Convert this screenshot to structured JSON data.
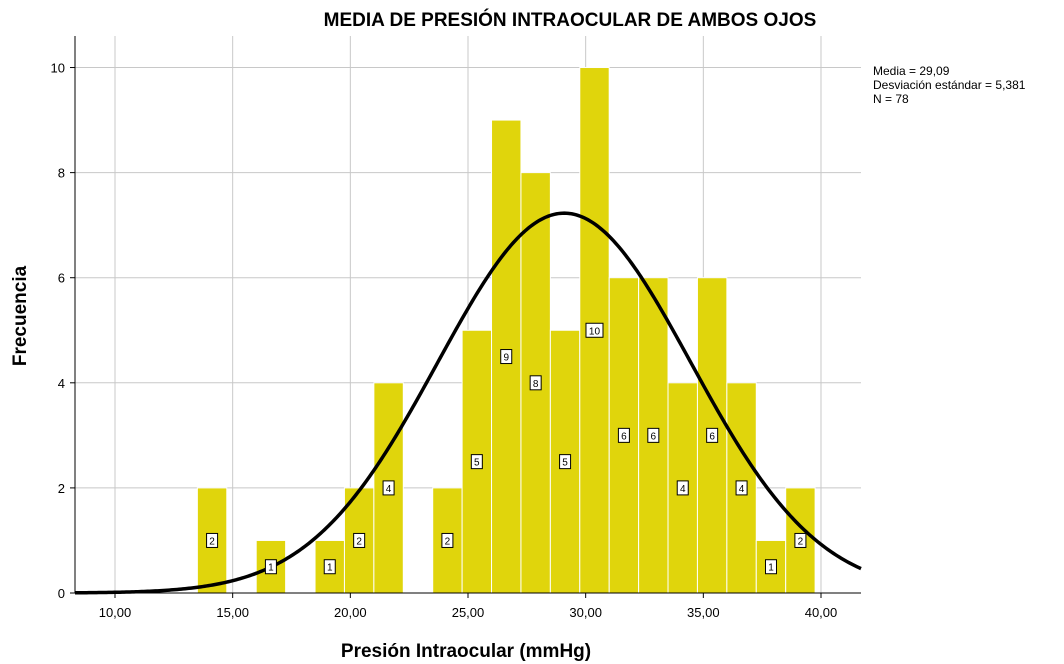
{
  "chart_data": {
    "type": "histogram",
    "title": "MEDIA DE PRESIÓN INTRAOCULAR DE AMBOS OJOS",
    "xlabel": "Presión Intraocular (mmHg)",
    "ylabel": "Frecuencia",
    "xlim": [
      8.3,
      41.7
    ],
    "ylim": [
      0,
      10.6
    ],
    "x_ticks": [
      10,
      15,
      20,
      25,
      30,
      35,
      40
    ],
    "x_tick_labels": [
      "10,00",
      "15,00",
      "20,00",
      "25,00",
      "30,00",
      "35,00",
      "40,00"
    ],
    "y_ticks": [
      0,
      2,
      4,
      6,
      8,
      10
    ],
    "y_tick_labels": [
      "0",
      "2",
      "4",
      "6",
      "8",
      "10"
    ],
    "grid": true,
    "bin_width": 1.25,
    "bars": [
      {
        "x_start": 13.5,
        "count": 2,
        "label": "2"
      },
      {
        "x_start": 16.0,
        "count": 1,
        "label": "1"
      },
      {
        "x_start": 18.5,
        "count": 1,
        "label": "1"
      },
      {
        "x_start": 19.75,
        "count": 2,
        "label": "2"
      },
      {
        "x_start": 21.0,
        "count": 4,
        "label": "4"
      },
      {
        "x_start": 23.5,
        "count": 2,
        "label": "2"
      },
      {
        "x_start": 24.75,
        "count": 5,
        "label": "5"
      },
      {
        "x_start": 26.0,
        "count": 9,
        "label": "9"
      },
      {
        "x_start": 27.25,
        "count": 8,
        "label": "8"
      },
      {
        "x_start": 28.5,
        "count": 5,
        "label": "5"
      },
      {
        "x_start": 29.75,
        "count": 10,
        "label": "10"
      },
      {
        "x_start": 31.0,
        "count": 6,
        "label": "6"
      },
      {
        "x_start": 32.25,
        "count": 6,
        "label": "6"
      },
      {
        "x_start": 33.5,
        "count": 4,
        "label": "4"
      },
      {
        "x_start": 34.75,
        "count": 6,
        "label": "6"
      },
      {
        "x_start": 36.0,
        "count": 4,
        "label": "4"
      },
      {
        "x_start": 37.25,
        "count": 1,
        "label": "1"
      },
      {
        "x_start": 38.5,
        "count": 2,
        "label": "2"
      }
    ],
    "normal_curve": {
      "mean": 29.09,
      "sd": 5.381,
      "n": 78
    },
    "stats_text": [
      "Media = 29,09",
      "Desviación estándar = 5,381",
      "N = 78"
    ],
    "colors": {
      "bar": "#e0d50c",
      "bar_edge": "#ffffff",
      "curve": "#000000",
      "grid": "#c8c8c8"
    }
  }
}
